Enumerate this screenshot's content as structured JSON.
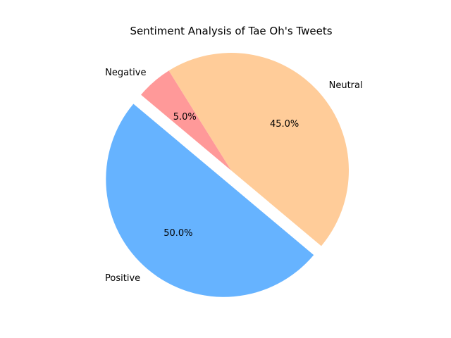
{
  "chart_data": {
    "type": "pie",
    "title": "Sentiment Analysis of Tae Oh's Tweets",
    "categories": [
      "Positive",
      "Neutral",
      "Negative"
    ],
    "values": [
      50,
      45,
      5
    ],
    "value_labels": [
      "50.0%",
      "45.0%",
      "5.0%"
    ],
    "colors": [
      "#66b3ff",
      "#ffcc99",
      "#ff9999"
    ],
    "explode": [
      0.1,
      0,
      0
    ],
    "start_angle": 140,
    "direction": "counterclockwise"
  }
}
